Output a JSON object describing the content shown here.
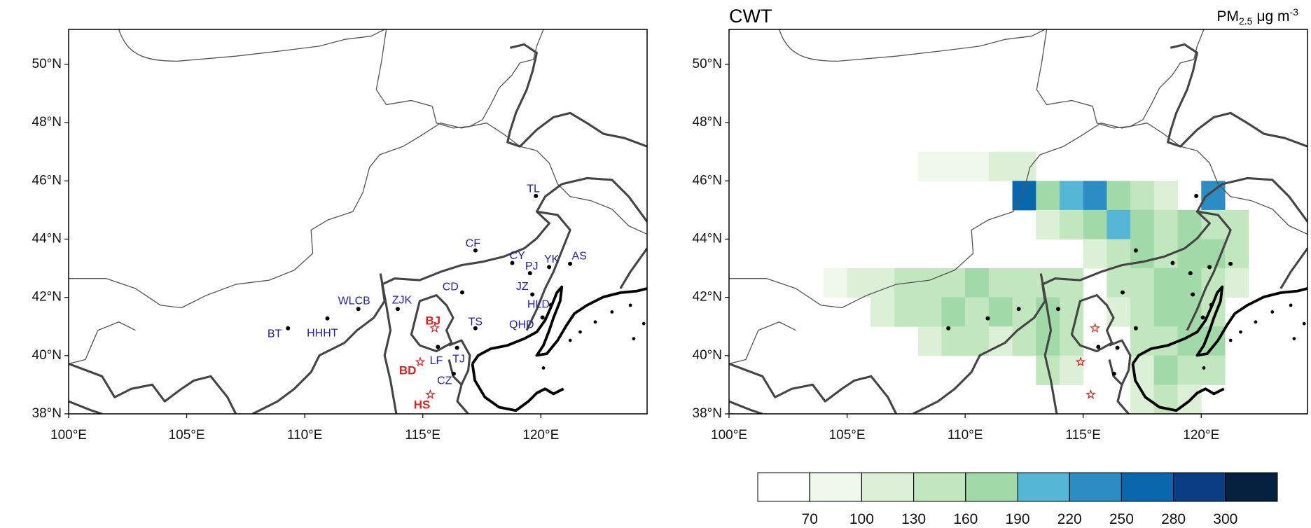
{
  "maps": [
    {
      "xlim": [
        100,
        124.5
      ],
      "ylim": [
        38,
        51.2
      ],
      "xticks": [
        {
          "value": 100,
          "label": "100°E"
        },
        {
          "value": 105,
          "label": "105°E"
        },
        {
          "value": 110,
          "label": "110°E"
        },
        {
          "value": 115,
          "label": "115°E"
        },
        {
          "value": 120,
          "label": "120°E"
        }
      ],
      "yticks": [
        {
          "value": 38,
          "label": "38°N"
        },
        {
          "value": 40,
          "label": "40°N"
        },
        {
          "value": 42,
          "label": "42°N"
        },
        {
          "value": 44,
          "label": "44°N"
        },
        {
          "value": 46,
          "label": "46°N"
        },
        {
          "value": 48,
          "label": "48°N"
        },
        {
          "value": 50,
          "label": "50°N"
        }
      ],
      "stations": [
        {
          "name": "TL",
          "lon": 119.79,
          "lat": 45.48,
          "marker": "dot",
          "color": "#1f1fb0"
        },
        {
          "name": "CF",
          "lon": 117.23,
          "lat": 43.61,
          "marker": "dot",
          "color": "#1f1fb0"
        },
        {
          "name": "CY",
          "lon": 118.79,
          "lat": 43.18,
          "marker": "dot",
          "color": "#1f1fb0"
        },
        {
          "name": "PJ",
          "lon": 119.54,
          "lat": 42.83,
          "marker": "dot",
          "color": "#1f1fb0"
        },
        {
          "name": "YK",
          "lon": 120.35,
          "lat": 43.04,
          "marker": "dot",
          "color": "#1f1fb0"
        },
        {
          "name": "AS",
          "lon": 121.24,
          "lat": 43.15,
          "marker": "dot",
          "color": "#1f1fb0"
        },
        {
          "name": "CD",
          "lon": 116.67,
          "lat": 42.17,
          "marker": "dot",
          "color": "#1f1fb0"
        },
        {
          "name": "JZ",
          "lon": 119.64,
          "lat": 42.1,
          "marker": "dot",
          "color": "#1f1fb0"
        },
        {
          "name": "HLD",
          "lon": 120.43,
          "lat": 41.74,
          "marker": "dot",
          "color": "#1f1fb0"
        },
        {
          "name": "QHD",
          "lon": 120.07,
          "lat": 41.31,
          "marker": "dot",
          "color": "#1f1fb0"
        },
        {
          "name": "TS",
          "lon": 117.23,
          "lat": 40.94,
          "marker": "dot",
          "color": "#1f1fb0"
        },
        {
          "name": "WLCB",
          "lon": 112.27,
          "lat": 41.6,
          "marker": "dot",
          "color": "#1f1fb0"
        },
        {
          "name": "ZJK",
          "lon": 113.94,
          "lat": 41.6,
          "marker": "dot",
          "color": "#1f1fb0"
        },
        {
          "name": "HHHT",
          "lon": 110.96,
          "lat": 41.28,
          "marker": "dot",
          "color": "#1f1fb0"
        },
        {
          "name": "BT",
          "lon": 109.29,
          "lat": 40.94,
          "marker": "dot",
          "color": "#1f1fb0"
        },
        {
          "name": "BJ",
          "lon": 115.5,
          "lat": 40.94,
          "marker": "star",
          "color": "#e0211d"
        },
        {
          "name": "LF",
          "lon": 115.64,
          "lat": 40.3,
          "marker": "dot",
          "color": "#1f1fb0"
        },
        {
          "name": "TJ",
          "lon": 116.45,
          "lat": 40.27,
          "marker": "dot",
          "color": "#1f1fb0"
        },
        {
          "name": "BD",
          "lon": 114.89,
          "lat": 39.78,
          "marker": "star",
          "color": "#e0211d"
        },
        {
          "name": "CZ",
          "lon": 116.31,
          "lat": 39.38,
          "marker": "dot",
          "color": "#1f1fb0"
        },
        {
          "name": "HS",
          "lon": 115.32,
          "lat": 38.66,
          "marker": "star",
          "color": "#e0211d"
        }
      ]
    },
    {
      "title": "CWT",
      "unit": {
        "base": "PM",
        "sub": "2.5",
        "units": "μg m",
        "sup": "-3"
      },
      "xlim": [
        100,
        124.5
      ],
      "ylim": [
        38,
        51.2
      ],
      "xticks": [
        {
          "value": 100,
          "label": "100°E"
        },
        {
          "value": 105,
          "label": "105°E"
        },
        {
          "value": 110,
          "label": "110°E"
        },
        {
          "value": 115,
          "label": "115°E"
        },
        {
          "value": 120,
          "label": "120°E"
        }
      ],
      "yticks": [
        {
          "value": 38,
          "label": "38°N"
        },
        {
          "value": 40,
          "label": "40°N"
        },
        {
          "value": 42,
          "label": "42°N"
        },
        {
          "value": 44,
          "label": "44°N"
        },
        {
          "value": 46,
          "label": "46°N"
        },
        {
          "value": 48,
          "label": "48°N"
        },
        {
          "value": 50,
          "label": "50°N"
        }
      ],
      "cwt_cells": [
        [
          108,
          46,
          85
        ],
        [
          109,
          46,
          85
        ],
        [
          110,
          46,
          85
        ],
        [
          111,
          46,
          115
        ],
        [
          112,
          46,
          115
        ],
        [
          112,
          45,
          265
        ],
        [
          113,
          45,
          175
        ],
        [
          114,
          45,
          205
        ],
        [
          115,
          45,
          235
        ],
        [
          116,
          45,
          175
        ],
        [
          117,
          45,
          145
        ],
        [
          118,
          45,
          115
        ],
        [
          120,
          45,
          235
        ],
        [
          113,
          44,
          115
        ],
        [
          114,
          44,
          145
        ],
        [
          115,
          44,
          175
        ],
        [
          116,
          44,
          205
        ],
        [
          117,
          44,
          175
        ],
        [
          118,
          44,
          145
        ],
        [
          119,
          44,
          175
        ],
        [
          120,
          44,
          145
        ],
        [
          121,
          44,
          145
        ],
        [
          115,
          43,
          115
        ],
        [
          116,
          43,
          145
        ],
        [
          117,
          43,
          175
        ],
        [
          118,
          43,
          145
        ],
        [
          119,
          43,
          175
        ],
        [
          120,
          43,
          175
        ],
        [
          121,
          43,
          145
        ],
        [
          104,
          42,
          85
        ],
        [
          105,
          42,
          115
        ],
        [
          106,
          42,
          115
        ],
        [
          107,
          42,
          145
        ],
        [
          108,
          42,
          145
        ],
        [
          109,
          42,
          145
        ],
        [
          110,
          42,
          175
        ],
        [
          111,
          42,
          145
        ],
        [
          112,
          42,
          145
        ],
        [
          113,
          42,
          145
        ],
        [
          114,
          42,
          145
        ],
        [
          116,
          42,
          145
        ],
        [
          117,
          42,
          145
        ],
        [
          118,
          42,
          175
        ],
        [
          119,
          42,
          175
        ],
        [
          120,
          42,
          145
        ],
        [
          121,
          42,
          115
        ],
        [
          106,
          41,
          115
        ],
        [
          107,
          41,
          145
        ],
        [
          108,
          41,
          145
        ],
        [
          109,
          41,
          175
        ],
        [
          110,
          41,
          145
        ],
        [
          111,
          41,
          175
        ],
        [
          112,
          41,
          145
        ],
        [
          113,
          41,
          175
        ],
        [
          114,
          41,
          145
        ],
        [
          116,
          41,
          115
        ],
        [
          117,
          41,
          145
        ],
        [
          118,
          41,
          175
        ],
        [
          119,
          41,
          175
        ],
        [
          120,
          41,
          145
        ],
        [
          108,
          40,
          115
        ],
        [
          109,
          40,
          145
        ],
        [
          110,
          40,
          145
        ],
        [
          111,
          40,
          115
        ],
        [
          112,
          40,
          145
        ],
        [
          113,
          40,
          175
        ],
        [
          114,
          40,
          145
        ],
        [
          117,
          40,
          145
        ],
        [
          118,
          40,
          145
        ],
        [
          119,
          40,
          175
        ],
        [
          120,
          40,
          175
        ],
        [
          113,
          39,
          145
        ],
        [
          114,
          39,
          115
        ],
        [
          117,
          39,
          115
        ],
        [
          118,
          39,
          175
        ],
        [
          119,
          39,
          145
        ],
        [
          120,
          39,
          145
        ],
        [
          117,
          38,
          115
        ],
        [
          118,
          38,
          145
        ],
        [
          119,
          38,
          115
        ]
      ],
      "colorbar": {
        "levels": [
          70,
          100,
          130,
          160,
          190,
          220,
          250,
          280,
          300
        ],
        "colors": [
          "#ffffff",
          "#eff8ea",
          "#dbf0d6",
          "#c2e6bd",
          "#a1d9a8",
          "#55b6d5",
          "#2b8dc4",
          "#0967ae",
          "#0a3e84",
          "#04203f"
        ]
      }
    }
  ]
}
